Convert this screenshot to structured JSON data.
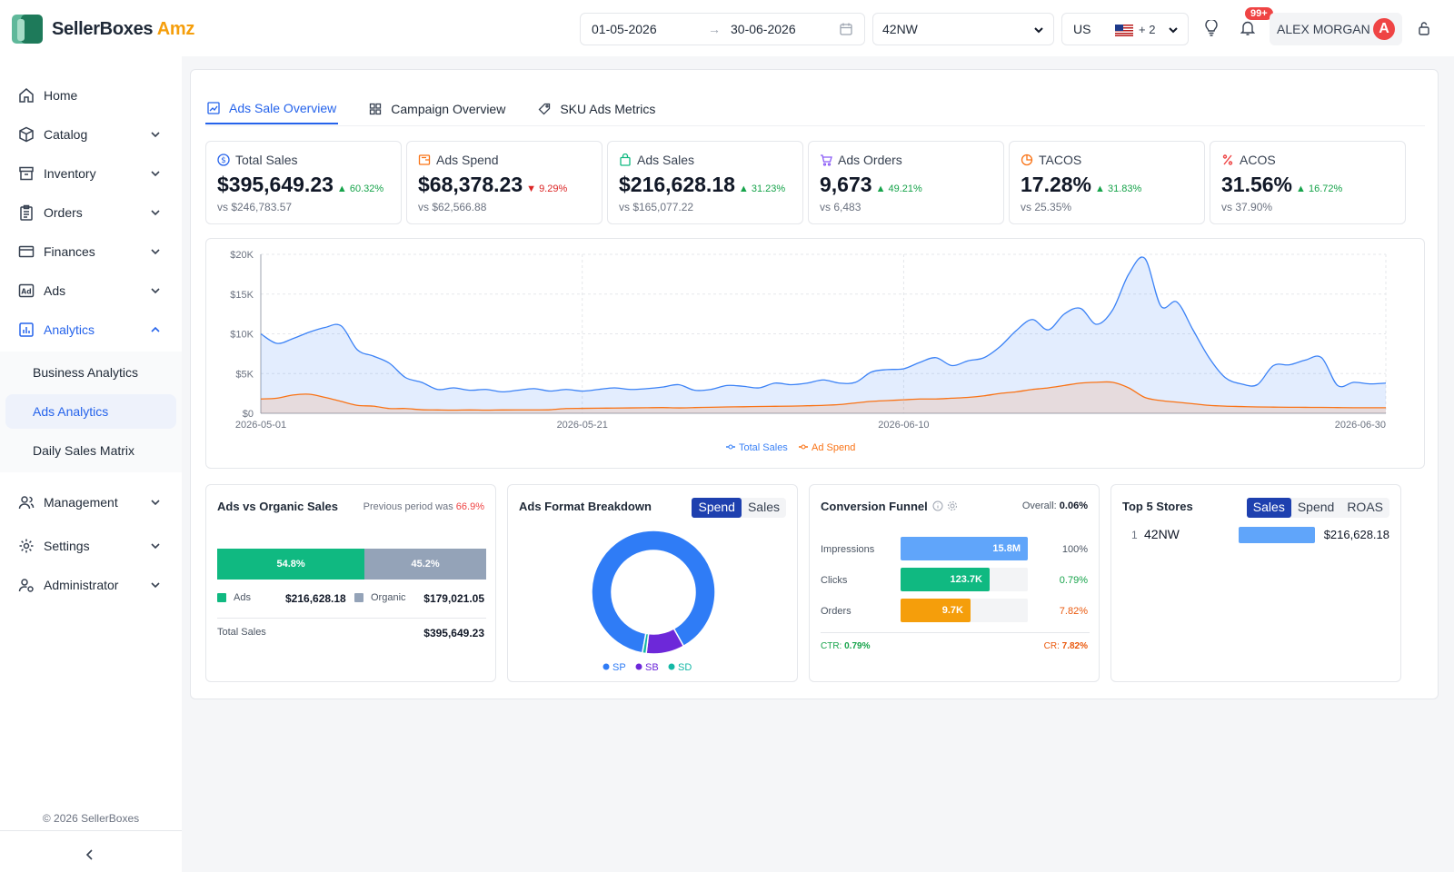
{
  "app": {
    "brand_main": "SellerBoxes",
    "brand_accent": "Amz",
    "accent_color": "#2563eb"
  },
  "header": {
    "date_from": "01-05-2026",
    "date_arrow": "→",
    "date_to": "30-06-2026",
    "store": "42NW",
    "marketplace": "US",
    "marketplace_more": "+ 2",
    "notification_count": "99+",
    "user_name": "ALEX MORGAN",
    "user_initial": "A"
  },
  "sidebar": {
    "items": [
      {
        "label": "Home",
        "icon": "home-icon"
      },
      {
        "label": "Catalog",
        "icon": "box-icon"
      },
      {
        "label": "Inventory",
        "icon": "archive-icon"
      },
      {
        "label": "Orders",
        "icon": "clipboard-icon"
      },
      {
        "label": "Finances",
        "icon": "card-icon"
      },
      {
        "label": "Ads",
        "icon": "ad-icon"
      },
      {
        "label": "Analytics",
        "icon": "chart-icon"
      },
      {
        "label": "Management",
        "icon": "users-icon"
      },
      {
        "label": "Settings",
        "icon": "gear-icon"
      },
      {
        "label": "Administrator",
        "icon": "admin-icon"
      }
    ],
    "analytics_sub": [
      "Business Analytics",
      "Ads Analytics",
      "Daily Sales Matrix"
    ],
    "copyright": "© 2026 SellerBoxes",
    "collapse": "<"
  },
  "tabs": [
    "Ads Sale Overview",
    "Campaign Overview",
    "SKU Ads Metrics"
  ],
  "kpis": [
    {
      "label": "Total Sales",
      "value": "$395,649.23",
      "change": "▲ 60.32%",
      "dir": "up",
      "prev": "vs $246,783.57",
      "color": "#2563eb"
    },
    {
      "label": "Ads Spend",
      "value": "$68,378.23",
      "change": "▼ 9.29%",
      "dir": "down",
      "prev": "vs $62,566.88",
      "color": "#f97316"
    },
    {
      "label": "Ads Sales",
      "value": "$216,628.18",
      "change": "▲ 31.23%",
      "dir": "up",
      "prev": "vs $165,077.22",
      "color": "#10b981"
    },
    {
      "label": "Ads Orders",
      "value": "9,673",
      "change": "▲ 49.21%",
      "dir": "up",
      "prev": "vs 6,483",
      "color": "#8b5cf6"
    },
    {
      "label": "TACOS",
      "value": "17.28%",
      "change": "▲ 31.83%",
      "dir": "up",
      "prev": "vs 25.35%",
      "color": "#f97316"
    },
    {
      "label": "ACOS",
      "value": "31.56%",
      "change": "▲ 16.72%",
      "dir": "up",
      "prev": "vs 37.90%",
      "color": "#ef4444"
    }
  ],
  "chart_data": {
    "type": "area",
    "x_start": "2026-05-01",
    "x_ticks": [
      "2026-05-01",
      "2026-05-21",
      "2026-06-10",
      "2026-06-30"
    ],
    "y_ticks": [
      "$0",
      "$5K",
      "$10K",
      "$15K",
      "$20K"
    ],
    "ylim": [
      0,
      20000
    ],
    "grid": true,
    "legend_position": "bottom",
    "series": [
      {
        "name": "Total Sales",
        "color": "#3b82f6",
        "values": [
          10000,
          8800,
          9400,
          10200,
          10800,
          11000,
          8000,
          7200,
          6300,
          4500,
          3900,
          3000,
          3200,
          2900,
          3000,
          2700,
          2900,
          3100,
          2800,
          3000,
          2800,
          3000,
          3200,
          3000,
          3100,
          3300,
          3600,
          2900,
          3000,
          3500,
          3400,
          3200,
          3800,
          3600,
          3800,
          4200,
          3800,
          3900,
          5200,
          5500,
          5600,
          6400,
          7000,
          6000,
          6600,
          7000,
          8400,
          10400,
          11800,
          10500,
          12500,
          13200,
          11200,
          13000,
          17500,
          19500,
          13500,
          14000,
          10500,
          7000,
          4500,
          3700,
          3600,
          6000,
          6100,
          6700,
          7000,
          3500,
          3900,
          3700,
          3800
        ]
      },
      {
        "name": "Ad Spend",
        "color": "#f97316",
        "values": [
          1800,
          1900,
          2300,
          2400,
          2000,
          1500,
          1000,
          900,
          600,
          600,
          450,
          420,
          400,
          420,
          400,
          420,
          430,
          430,
          450,
          600,
          620,
          640,
          660,
          680,
          700,
          720,
          680,
          720,
          760,
          800,
          820,
          860,
          880,
          900,
          950,
          1000,
          1100,
          1300,
          1500,
          1600,
          1700,
          1800,
          1800,
          1900,
          2000,
          2200,
          2500,
          2700,
          3000,
          3200,
          3500,
          3800,
          3900,
          3900,
          3200,
          2000,
          1600,
          1400,
          1200,
          1000,
          900,
          850,
          800,
          780,
          760,
          750,
          740,
          720,
          700,
          700,
          700
        ]
      }
    ]
  },
  "ads_vs_organic": {
    "title": "Ads vs Organic Sales",
    "prev_label": "Previous period was",
    "prev_value": "66.9%",
    "ads_pct_value": 54.8,
    "ads_pct": "54.8%",
    "organic_pct": "45.2%",
    "ads_label": "Ads",
    "ads_value": "$216,628.18",
    "organic_label": "Organic",
    "organic_value": "$179,021.05",
    "total_label": "Total Sales",
    "total_value": "$395,649.23",
    "ads_color": "#10b981",
    "organic_color": "#94a3b8"
  },
  "format_breakdown": {
    "title": "Ads Format Breakdown",
    "toggle": [
      "Spend",
      "Sales"
    ],
    "slices": [
      {
        "name": "SP",
        "value": 89,
        "color": "#2f7cf6"
      },
      {
        "name": "SB",
        "value": 10,
        "color": "#6d28d9"
      },
      {
        "name": "SD",
        "value": 1,
        "color": "#14b8a6"
      }
    ]
  },
  "funnel": {
    "title": "Conversion Funnel",
    "overall_label": "Overall:",
    "overall_value": "0.06%",
    "rows": [
      {
        "label": "Impressions",
        "value": "15.8M",
        "fill": 1.0,
        "pct": "100%",
        "color": "#60a5fa",
        "pct_color": "#4b5563"
      },
      {
        "label": "Clicks",
        "value": "123.7K",
        "fill": 0.7,
        "pct": "0.79%",
        "color": "#10b981",
        "pct_color": "#16a34a"
      },
      {
        "label": "Orders",
        "value": "9.7K",
        "fill": 0.55,
        "pct": "7.82%",
        "color": "#f59e0b",
        "pct_color": "#ea580c"
      }
    ],
    "ctr_label": "CTR:",
    "ctr_value": "0.79%",
    "cr_label": "CR:",
    "cr_value": "7.82%"
  },
  "top_stores": {
    "title": "Top 5 Stores",
    "toggle": [
      "Sales",
      "Spend",
      "ROAS"
    ],
    "rows": [
      {
        "rank": "1",
        "name": "42NW",
        "value": "$216,628.18"
      }
    ]
  }
}
